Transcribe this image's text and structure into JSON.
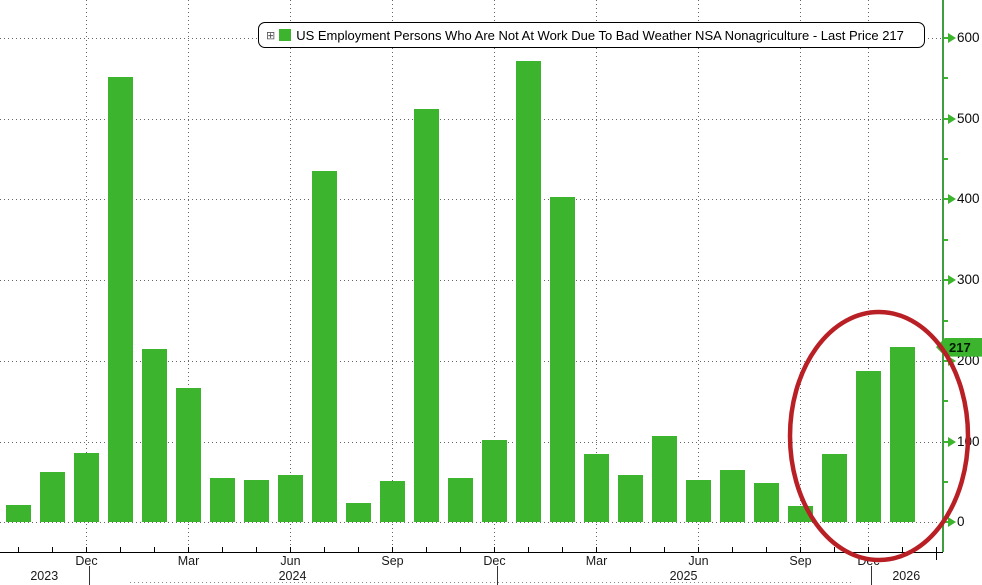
{
  "legend": {
    "expand_icon": "⊞",
    "series_label": "US Employment Persons Who Are Not At Work Due To Bad Weather NSA Nonagriculture - Last Price 217",
    "swatch_color": "#3cb42e"
  },
  "y_axis": {
    "major_ticks": [
      0,
      100,
      200,
      300,
      400,
      500,
      600
    ],
    "minor_ticks": [
      50,
      150,
      250,
      350,
      450,
      550
    ],
    "last_price": {
      "label": "217",
      "value": 217
    },
    "axis_color": "#3f9e3f"
  },
  "x_axis": {
    "month_labels": [
      {
        "text": "Dec",
        "bar_index": 2
      },
      {
        "text": "Mar",
        "bar_index": 5
      },
      {
        "text": "Jun",
        "bar_index": 8
      },
      {
        "text": "Sep",
        "bar_index": 11
      },
      {
        "text": "Dec",
        "bar_index": 14
      },
      {
        "text": "Mar",
        "bar_index": 17
      },
      {
        "text": "Jun",
        "bar_index": 20
      },
      {
        "text": "Sep",
        "bar_index": 23
      },
      {
        "text": "Dec",
        "bar_index": 25
      }
    ],
    "years": [
      {
        "label": "2023",
        "end_bar_index": 2
      },
      {
        "label": "2024",
        "end_bar_index": 14
      },
      {
        "label": "2025",
        "end_bar_index": 25
      },
      {
        "label": "2026",
        "end_bar_index": -1
      }
    ]
  },
  "annotations": {
    "highlight_ellipse_color": "#b92025"
  },
  "chart_data": {
    "type": "bar",
    "title": "US Employment Persons Who Are Not At Work Due To Bad Weather NSA Nonagriculture",
    "legend_entry": "US Employment Persons Who Are Not At Work Due To Bad Weather NSA Nonagriculture - Last Price 217",
    "last_price": 217,
    "bar_color": "#3cb42e",
    "grid": "dotted",
    "legend_position": "top",
    "y_axis_side": "right",
    "ylim": [
      0,
      620
    ],
    "categories": [
      "Oct 2023",
      "Nov 2023",
      "Dec 2023",
      "Jan 2024",
      "Feb 2024",
      "Mar 2024",
      "Apr 2024",
      "May 2024",
      "Jun 2024",
      "Jul 2024",
      "Aug 2024",
      "Sep 2024",
      "Oct 2024",
      "Nov 2024",
      "Dec 2024",
      "Jan 2025",
      "Feb 2025",
      "Mar 2025",
      "Apr 2025",
      "May 2025",
      "Jun 2025",
      "Jul 2025",
      "Aug 2025",
      "Sep 2025",
      "Nov 2025",
      "Dec 2025",
      "Jan 2026"
    ],
    "values": [
      22,
      62,
      86,
      552,
      215,
      166,
      55,
      52,
      59,
      435,
      24,
      51,
      512,
      55,
      102,
      571,
      403,
      85,
      58,
      107,
      52,
      65,
      49,
      20,
      85,
      187,
      217
    ]
  }
}
